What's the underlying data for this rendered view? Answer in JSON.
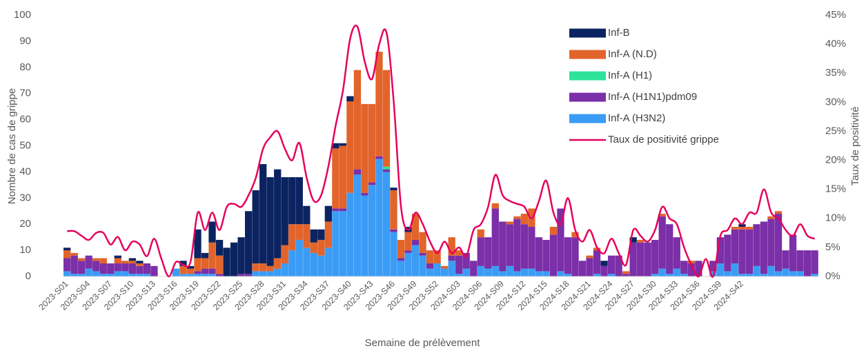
{
  "chart_data": {
    "type": "bar",
    "stacked": true,
    "x_label": "Semaine de prélèvement",
    "y_label": "Nombre de cas de grippe",
    "y2_label": "Taux de positivité",
    "ylim": [
      0,
      100
    ],
    "yticks": [
      0,
      10,
      20,
      30,
      40,
      50,
      60,
      70,
      80,
      90,
      100
    ],
    "y2lim": [
      0,
      45
    ],
    "y2ticks": [
      {
        "value": 0,
        "label": "0%"
      },
      {
        "value": 5,
        "label": "5%"
      },
      {
        "value": 10,
        "label": "10%"
      },
      {
        "value": 15,
        "label": "15%"
      },
      {
        "value": 20,
        "label": "20%"
      },
      {
        "value": 25,
        "label": "25%"
      },
      {
        "value": 30,
        "label": "30%"
      },
      {
        "value": 35,
        "label": "35%"
      },
      {
        "value": 40,
        "label": "40%"
      },
      {
        "value": 45,
        "label": "45%"
      }
    ],
    "categories": [
      "2023-S01",
      null,
      null,
      "2023-S04",
      null,
      null,
      "2023-S07",
      null,
      null,
      "2023-S10",
      null,
      null,
      "2023-S13",
      null,
      null,
      "2023-S16",
      null,
      null,
      "2023-S19",
      null,
      null,
      "2023-S22",
      null,
      null,
      "2023-S25",
      null,
      null,
      "2023-S28",
      null,
      null,
      "2023-S31",
      null,
      null,
      "2023-S34",
      null,
      null,
      "2023-S37",
      null,
      null,
      "2023-S40",
      null,
      null,
      "2023-S43",
      null,
      null,
      "2023-S46",
      null,
      null,
      "2023-S49",
      null,
      null,
      "2023-S52",
      null,
      null,
      "2024-S03",
      null,
      null,
      "2024-S06",
      null,
      null,
      "2024-S09",
      null,
      null,
      "2024-S12",
      null,
      null,
      "2024-S15",
      null,
      null,
      "2024-S18",
      null,
      null,
      "2024-S21",
      null,
      null,
      "2024-S24",
      null,
      null,
      "2024-S27",
      null,
      null,
      "2024-S30",
      null,
      null,
      "2024-S33",
      null,
      null,
      "2024-S36",
      null,
      null,
      "2024-S39",
      null,
      null,
      "2024-S42",
      null,
      null,
      null,
      null,
      null,
      null,
      null,
      null,
      null,
      null
    ],
    "series": [
      {
        "name": "Inf-A (H3N2)",
        "color": "#3a9cf5",
        "values": [
          2,
          1,
          1,
          3,
          2,
          1,
          1,
          2,
          2,
          1,
          1,
          1,
          0,
          0,
          0,
          3,
          1,
          1,
          1,
          1,
          1,
          0,
          0,
          0,
          0,
          0,
          2,
          2,
          2,
          3,
          5,
          10,
          14,
          11,
          9,
          8,
          11,
          25,
          25,
          32,
          39,
          31,
          35,
          45,
          40,
          17,
          6,
          9,
          12,
          8,
          3,
          5,
          3,
          6,
          1,
          3,
          0,
          4,
          3,
          4,
          2,
          4,
          2,
          3,
          3,
          2,
          2,
          0,
          2,
          1,
          0,
          0,
          0,
          1,
          0,
          1,
          0,
          0,
          0,
          0,
          0,
          1,
          3,
          1,
          3,
          1,
          0,
          0,
          0,
          2,
          5,
          2,
          5,
          1,
          1,
          4,
          1,
          4,
          2,
          3,
          2,
          2,
          0,
          1
        ]
      },
      {
        "name": "Inf-A  (H1N1)pdm09",
        "color": "#7b2fa8",
        "values": [
          5,
          7,
          5,
          5,
          4,
          4,
          4,
          3,
          3,
          4,
          3,
          4,
          4,
          0,
          0,
          0,
          0,
          0,
          1,
          2,
          2,
          1,
          0,
          0,
          1,
          1,
          0,
          0,
          0,
          0,
          0,
          0,
          0,
          0,
          0,
          0,
          0,
          1,
          1,
          0,
          2,
          1,
          1,
          1,
          1,
          1,
          1,
          1,
          2,
          1,
          2,
          0,
          0,
          2,
          7,
          6,
          6,
          11,
          12,
          22,
          19,
          16,
          20,
          17,
          16,
          13,
          12,
          16,
          24,
          14,
          15,
          6,
          7,
          9,
          4,
          7,
          8,
          1,
          13,
          13,
          13,
          13,
          20,
          19,
          12,
          5,
          5,
          6,
          0,
          4,
          10,
          14,
          13,
          17,
          17,
          16,
          20,
          18,
          22,
          7,
          14,
          8,
          10,
          9
        ]
      },
      {
        "name": "Inf-A (H1)",
        "color": "#2fe39a",
        "values": [
          0,
          0,
          0,
          0,
          0,
          0,
          0,
          0,
          0,
          0,
          0,
          0,
          0,
          0,
          0,
          0,
          0,
          0,
          0,
          0,
          0,
          0,
          0,
          0,
          0,
          0,
          0,
          0,
          0,
          0,
          0,
          0,
          0,
          0,
          0,
          0,
          0,
          0,
          0,
          0,
          0,
          0,
          0,
          0,
          1,
          0,
          0,
          0,
          0,
          0,
          0,
          0,
          0,
          0,
          0,
          0,
          0,
          0,
          0,
          0,
          0,
          0,
          0,
          0,
          0,
          0,
          0,
          0,
          0,
          0,
          0,
          0,
          0,
          0,
          0,
          0,
          0,
          0,
          0,
          0,
          0,
          0,
          0,
          0,
          0,
          0,
          0,
          0,
          0,
          0,
          0,
          0,
          0,
          0,
          0,
          0,
          0,
          0,
          0,
          0,
          0,
          0,
          0,
          0
        ]
      },
      {
        "name": "Inf-A (N.D)",
        "color": "#e2642b",
        "values": [
          3,
          1,
          1,
          0,
          1,
          2,
          0,
          2,
          1,
          1,
          1,
          0,
          0,
          0,
          0,
          0,
          3,
          2,
          5,
          4,
          10,
          7,
          0,
          0,
          0,
          0,
          3,
          3,
          2,
          4,
          7,
          10,
          6,
          9,
          4,
          6,
          10,
          23,
          24,
          35,
          38,
          34,
          30,
          40,
          37,
          15,
          7,
          7,
          10,
          8,
          5,
          5,
          1,
          7,
          2,
          0,
          0,
          3,
          0,
          2,
          0,
          1,
          1,
          4,
          7,
          0,
          0,
          3,
          0,
          0,
          2,
          0,
          1,
          1,
          0,
          0,
          0,
          1,
          0,
          1,
          0,
          0,
          1,
          0,
          0,
          0,
          1,
          0,
          0,
          0,
          0,
          0,
          1,
          1,
          1,
          0,
          0,
          1,
          1,
          0,
          0,
          0,
          0,
          0
        ]
      },
      {
        "name": "Inf-B",
        "color": "#0b2461",
        "values": [
          1,
          0,
          0,
          0,
          0,
          0,
          0,
          1,
          0,
          1,
          1,
          0,
          0,
          0,
          0,
          0,
          2,
          1,
          11,
          2,
          8,
          6,
          11,
          13,
          14,
          24,
          28,
          38,
          34,
          34,
          26,
          18,
          18,
          7,
          5,
          4,
          6,
          2,
          1,
          2,
          0,
          0,
          0,
          0,
          0,
          1,
          0,
          2,
          0,
          0,
          0,
          0,
          0,
          0,
          0,
          0,
          0,
          0,
          0,
          0,
          0,
          0,
          0,
          0,
          0,
          0,
          0,
          0,
          0,
          0,
          0,
          0,
          0,
          0,
          2,
          0,
          0,
          0,
          2,
          0,
          0,
          0,
          0,
          0,
          0,
          0,
          0,
          0,
          0,
          0,
          0,
          0,
          0,
          1,
          0,
          0,
          0,
          0,
          0,
          0,
          0,
          0,
          0,
          0
        ]
      },
      {
        "name": "Taux de positivité grippe",
        "color": "#e6005c",
        "type": "line",
        "axis": "y2",
        "values": [
          7.8,
          7.8,
          7.0,
          6.3,
          7.5,
          7.5,
          5.5,
          6.8,
          4.5,
          6.0,
          5.5,
          3.5,
          6.5,
          3.0,
          0,
          2.5,
          2.0,
          2.5,
          11,
          8,
          11,
          8,
          12,
          12.5,
          12,
          14,
          17,
          22,
          24,
          25,
          22,
          20,
          23,
          17,
          13,
          14,
          19,
          26,
          32,
          41,
          43,
          37,
          34,
          40,
          42,
          30,
          12,
          8,
          11,
          9,
          6,
          4,
          6,
          4,
          5,
          3.5,
          8,
          9,
          12,
          17.5,
          14,
          13,
          12.5,
          12,
          10,
          13,
          16.5,
          11,
          9,
          13.5,
          8,
          6,
          8,
          5,
          4,
          6.5,
          4,
          2,
          8,
          7,
          6,
          8,
          12,
          10,
          9,
          5,
          2,
          0,
          3,
          0,
          7,
          8,
          10,
          9,
          11,
          11,
          15,
          11,
          10,
          8,
          7,
          9,
          7,
          6.5
        ]
      }
    ],
    "legend": "upper right"
  }
}
